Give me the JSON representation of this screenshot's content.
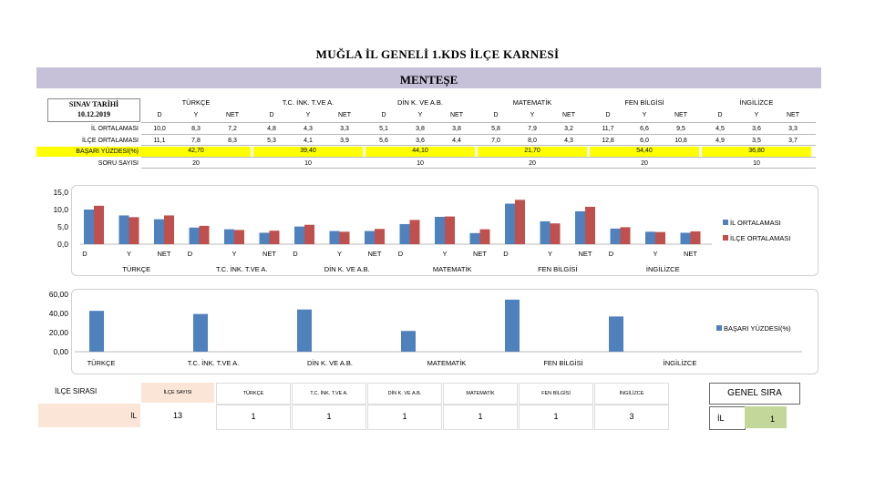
{
  "title": "MUĞLA İL GENELİ 1.KDS İLÇE KARNESİ",
  "district": "MENTEŞE",
  "exam_date_label": "SINAV TARİHİ",
  "exam_date": "10.12.2019",
  "row_labels": {
    "il_avg": "İL ORTALAMASI",
    "ilce_avg": "İLÇE ORTALAMASI",
    "success": "BAŞARI YÜZDESİ(%)",
    "question_count": "SORU SAYISI"
  },
  "col_headers": [
    "D",
    "Y",
    "NET"
  ],
  "subjects": [
    {
      "name": "TÜRKÇE",
      "il": [
        "10,0",
        "8,3",
        "7,2"
      ],
      "ilce": [
        "11,1",
        "7,8",
        "8,3"
      ],
      "success": "42,70",
      "questions": "20"
    },
    {
      "name": "T.C. İNK. T.VE A.",
      "il": [
        "4,8",
        "4,3",
        "3,3"
      ],
      "ilce": [
        "5,3",
        "4,1",
        "3,9"
      ],
      "success": "39,40",
      "questions": "10"
    },
    {
      "name": "DİN K. VE A.B.",
      "il": [
        "5,1",
        "3,8",
        "3,8"
      ],
      "ilce": [
        "5,6",
        "3,6",
        "4,4"
      ],
      "success": "44,10",
      "questions": "10"
    },
    {
      "name": "MATEMATİK",
      "il": [
        "5,8",
        "7,9",
        "3,2"
      ],
      "ilce": [
        "7,0",
        "8,0",
        "4,3"
      ],
      "success": "21,70",
      "questions": "20"
    },
    {
      "name": "FEN BİLGİSİ",
      "il": [
        "11,7",
        "6,6",
        "9,5"
      ],
      "ilce": [
        "12,8",
        "6,0",
        "10,8"
      ],
      "success": "54,40",
      "questions": "20"
    },
    {
      "name": "İNGİLİZCE",
      "il": [
        "4,5",
        "3,6",
        "3,3"
      ],
      "ilce": [
        "4,9",
        "3,5",
        "3,7"
      ],
      "success": "36,80",
      "questions": "10"
    }
  ],
  "chart_data": [
    {
      "type": "bar",
      "categories": [
        "D",
        "Y",
        "NET",
        "D",
        "Y",
        "NET",
        "D",
        "Y",
        "NET",
        "D",
        "Y",
        "NET",
        "D",
        "Y",
        "NET",
        "D",
        "Y",
        "NET"
      ],
      "group_labels": [
        "TÜRKÇE",
        "T.C. İNK. T.VE A.",
        "DİN K. VE A.B.",
        "MATEMATİK",
        "FEN BİLGİSİ",
        "İNGİLİZCE"
      ],
      "series": [
        {
          "name": "İL ORTALAMASI",
          "color": "#4f81bd",
          "values": [
            10.0,
            8.3,
            7.2,
            4.8,
            4.3,
            3.3,
            5.1,
            3.8,
            3.8,
            5.8,
            7.9,
            3.2,
            11.7,
            6.6,
            9.5,
            4.5,
            3.6,
            3.3
          ]
        },
        {
          "name": "İLÇE ORTALAMASI",
          "color": "#c0504d",
          "values": [
            11.1,
            7.8,
            8.3,
            5.3,
            4.1,
            3.9,
            5.6,
            3.6,
            4.4,
            7.0,
            8.0,
            4.3,
            12.8,
            6.0,
            10.8,
            4.9,
            3.5,
            3.7
          ]
        }
      ],
      "yticks": [
        "0,0",
        "5,0",
        "10,0",
        "15,0"
      ],
      "ylim": [
        0,
        15
      ]
    },
    {
      "type": "bar",
      "categories": [
        "TÜRKÇE",
        "T.C. İNK. T.VE A.",
        "DİN K. VE A.B.",
        "MATEMATİK",
        "FEN BİLGİSİ",
        "İNGİLİZCE"
      ],
      "series": [
        {
          "name": "BAŞARI YÜZDESİ(%)",
          "color": "#4f81bd",
          "values": [
            42.7,
            39.4,
            44.1,
            21.7,
            54.4,
            36.8
          ]
        }
      ],
      "yticks": [
        "0,00",
        "20,00",
        "40,00",
        "60,00"
      ],
      "ylim": [
        0,
        60
      ]
    }
  ],
  "ranking": {
    "label": "İLÇE SIRASI",
    "il_label": "İL",
    "count_label": "İLÇE SAYISI",
    "count": "13",
    "subjects": [
      "TÜRKÇE",
      "T.C. İNK. T.VE A.",
      "DİN K. VE A.B.",
      "MATEMATİK",
      "FEN BİLGİSİ",
      "İNGİLİZCE"
    ],
    "ranks": [
      "1",
      "1",
      "1",
      "1",
      "1",
      "3"
    ],
    "general_label": "GENEL SIRA",
    "general_il": "İL",
    "general_rank": "1"
  }
}
